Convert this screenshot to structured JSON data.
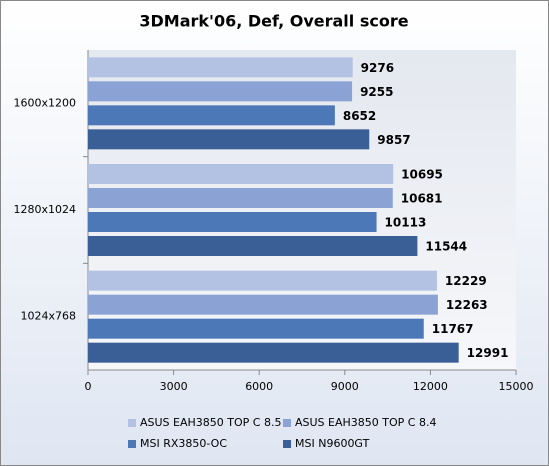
{
  "chart_data": {
    "type": "bar",
    "orientation": "horizontal",
    "title": "3DMark'06, Def, Overall score",
    "categories": [
      "1600x1200",
      "1280x1024",
      "1024x768"
    ],
    "series": [
      {
        "name": "ASUS EAH3850 TOP C 8.5",
        "color": "#b3c2e2",
        "values": [
          9276,
          10695,
          12229
        ]
      },
      {
        "name": "ASUS EAH3850 TOP C 8.4",
        "color": "#8aa3d4",
        "values": [
          9255,
          10681,
          12263
        ]
      },
      {
        "name": "MSI RX3850-OC",
        "color": "#4c78b8",
        "values": [
          8652,
          10113,
          11767
        ]
      },
      {
        "name": "MSI N9600GT",
        "color": "#3a5e96",
        "values": [
          9857,
          11544,
          12991
        ]
      }
    ],
    "xlim": [
      0,
      15000
    ],
    "xticks": [
      0,
      3000,
      6000,
      9000,
      12000,
      15000
    ],
    "grid": false,
    "legend": "bottom"
  }
}
